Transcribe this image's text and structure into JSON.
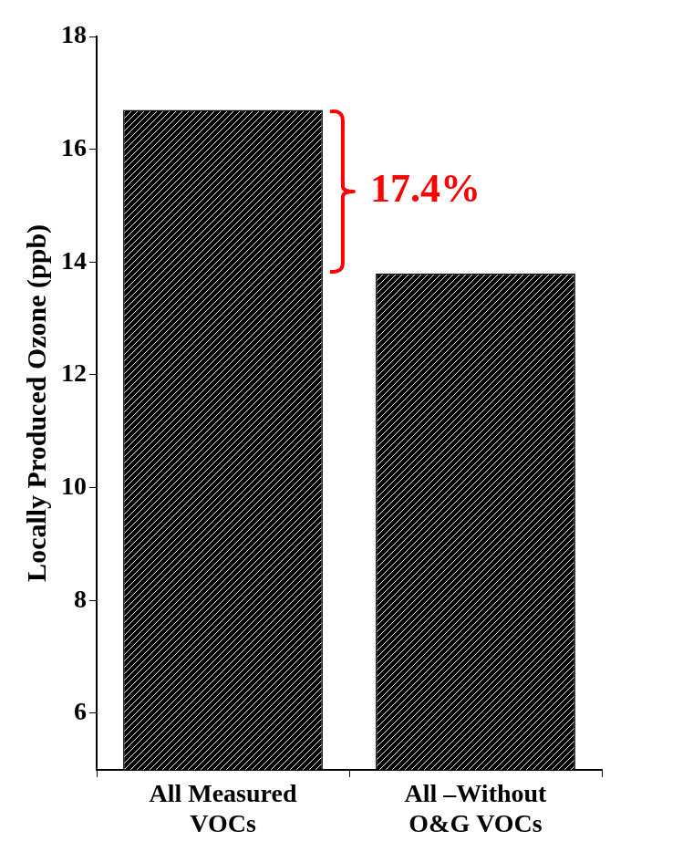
{
  "chart_data": {
    "type": "bar",
    "y_label": "Locally Produced Ozone (ppb)",
    "categories": [
      [
        "All Measured",
        "VOCs"
      ],
      [
        "All –Without",
        "O&G VOCs"
      ]
    ],
    "values": [
      16.7,
      13.8
    ],
    "color": "#000000",
    "ylim": [
      5,
      18
    ],
    "yticks": [
      6,
      8,
      10,
      12,
      14,
      16,
      18
    ],
    "grid": false,
    "annotations": [
      {
        "text": "17.4%",
        "color": "#ff0000"
      }
    ]
  }
}
